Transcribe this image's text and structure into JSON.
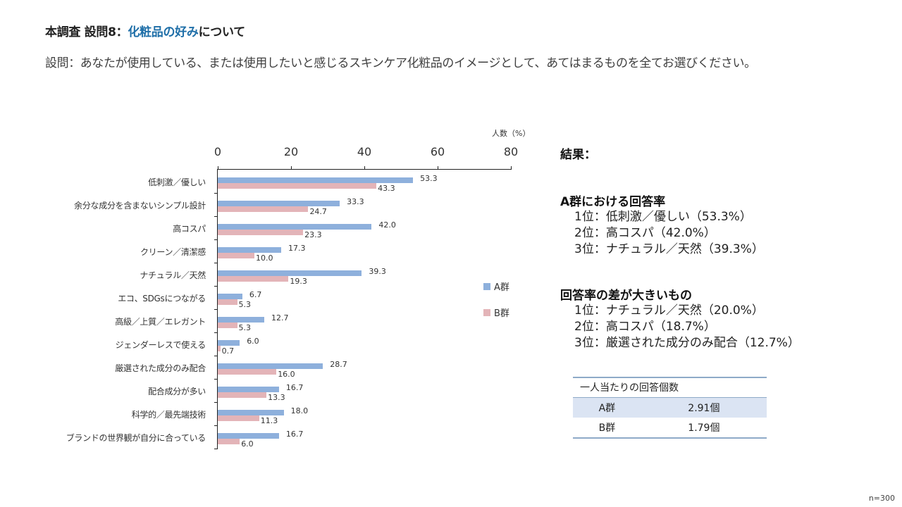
{
  "header": {
    "title_prefix": "本調査 設問8：",
    "title_highlight": "化粧品の好み",
    "title_suffix": "について",
    "question": "設問：あなたが使用している、または使用したいと感じるスキンケア化粧品のイメージとして、あてはまるものを全てお選びください。"
  },
  "chart_data": {
    "type": "bar",
    "orientation": "horizontal",
    "title": "",
    "xlabel": "人数（%）",
    "ylabel": "",
    "xlim": [
      0,
      80
    ],
    "x_ticks": [
      0,
      20,
      40,
      60,
      80
    ],
    "grid": false,
    "legend_position": "right",
    "categories": [
      "低刺激／優しい",
      "余分な成分を含まないシンプル設計",
      "高コスパ",
      "クリーン／清潔感",
      "ナチュラル／天然",
      "エコ、SDGsにつながる",
      "高級／上質／エレガント",
      "ジェンダーレスで使える",
      "厳選された成分のみ配合",
      "配合成分が多い",
      "科学的／最先端技術",
      "ブランドの世界観が自分に合っている"
    ],
    "series": [
      {
        "name": "A群",
        "color": "#8eb0dc",
        "values": [
          53.3,
          33.3,
          42.0,
          17.3,
          39.3,
          6.7,
          12.7,
          6.0,
          28.7,
          16.7,
          18.0,
          16.7
        ]
      },
      {
        "name": "B群",
        "color": "#e3b4b8",
        "values": [
          43.3,
          24.7,
          23.3,
          10.0,
          19.3,
          5.3,
          5.3,
          0.7,
          16.0,
          13.3,
          11.3,
          6.0
        ]
      }
    ]
  },
  "results": {
    "heading": "結果：",
    "section1": {
      "heading": "A群における回答率",
      "lines": [
        "1位：低刺激／優しい（53.3%）",
        "2位：高コスパ（42.0%）",
        "3位：ナチュラル／天然（39.3%）"
      ]
    },
    "section2": {
      "heading": "回答率の差が大きいもの",
      "lines": [
        "1位：ナチュラル／天然（20.0%）",
        "2位：高コスパ（18.7%）",
        "3位：厳選された成分のみ配合（12.7%）"
      ]
    }
  },
  "stats_table": {
    "header": "一人当たりの回答個数",
    "rows": [
      {
        "group": "A群",
        "value": "2.91個"
      },
      {
        "group": "B群",
        "value": "1.79個"
      }
    ]
  },
  "footer": {
    "sample_size": "n=300"
  }
}
